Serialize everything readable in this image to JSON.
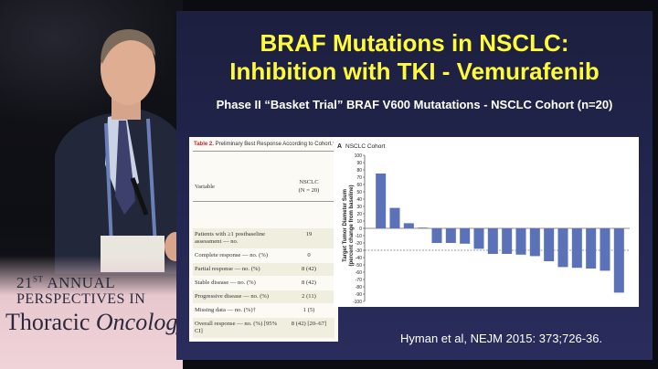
{
  "branding": {
    "line1_number": "21",
    "line1_suffix": "ST",
    "line1_rest": " ANNUAL",
    "line2": "PERSPECTIVES IN",
    "line3_a": "Thoracic ",
    "line3_b": "Oncology"
  },
  "slide": {
    "title_line1": "BRAF Mutations in NSCLC:",
    "title_line2": "Inhibition with TKI - Vemurafenib",
    "subtitle": "Phase II “Basket Trial” BRAF V600 Mutatations - NSCLC Cohort (n=20)",
    "citation": "Hyman et al, NEJM 2015: 373;726-36."
  },
  "table": {
    "caption_label": "Table 2.",
    "caption_text": " Preliminary Best Response According to Cohort.*",
    "header_variable": "Variable",
    "header_col_line1": "NSCLC",
    "header_col_line2": "(N = 20)",
    "rows": [
      {
        "label": "Patients with ≥1 postbaseline assessment — no.",
        "value": "19"
      },
      {
        "label": "Complete response — no. (%)",
        "value": "0"
      },
      {
        "label": "Partial response — no. (%)",
        "value": "8 (42)"
      },
      {
        "label": "Stable disease — no. (%)",
        "value": "8 (42)"
      },
      {
        "label": "Progressive disease — no. (%)",
        "value": "2 (11)"
      },
      {
        "label": "Missing data — no. (%)†",
        "value": "1 (5)"
      },
      {
        "label": "Overall response — no. (%) [95% CI]",
        "value": "8 (42) [20–67]"
      }
    ]
  },
  "chart_data": {
    "type": "bar",
    "panel_label": "A",
    "title": "NSCLC Cohort",
    "ylabel_line1": "Target Tumor Diameter Sum",
    "ylabel_line2": "(percent change from baseline)",
    "ylim": [
      -100,
      100
    ],
    "yticks": [
      100,
      90,
      80,
      70,
      60,
      50,
      40,
      30,
      20,
      10,
      0,
      -10,
      -20,
      -30,
      -40,
      -50,
      -60,
      -70,
      -80,
      -90,
      -100
    ],
    "values": [
      75,
      28,
      7,
      1,
      -20,
      -20,
      -21,
      -28,
      -35,
      -35,
      -36,
      -38,
      -45,
      -53,
      -54,
      -55,
      -58,
      -88
    ],
    "threshold": -30,
    "bar_color": "#5b72b8",
    "grid": false
  }
}
